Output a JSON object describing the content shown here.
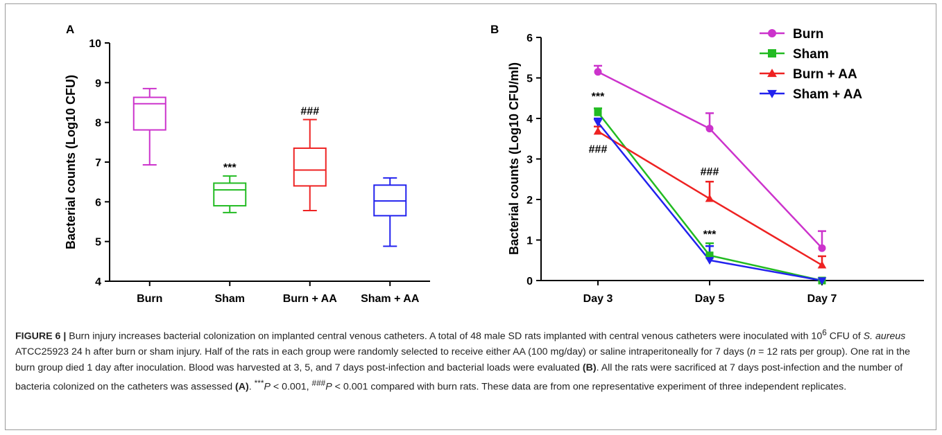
{
  "figure": {
    "caption": {
      "label": "FIGURE 6 |",
      "s1": " Burn injury increases bacterial colonization on implanted central venous catheters. A total of 48 male SD rats implanted with central venous catheters were inoculated with 10",
      "sup1": "6",
      "s2": " CFU of ",
      "species": "S. aureus",
      "s3": " ATCC25923 24 h after burn or sham injury. Half of the rats in each group were randomly selected to receive either AA (100 mg/day) or saline intraperitoneally for 7 days (",
      "n_italic": "n",
      "s4": " = 12 rats per group). One rat in the burn group died 1 day after inoculation. Blood was harvested at 3, 5, and 7 days post-infection and bacterial loads were evaluated ",
      "ref_b": "(B)",
      "s5": ". All the rats were sacrificed at 7 days post-infection and the number of bacteria colonized on the catheters was assessed ",
      "ref_a": "(A)",
      "s6": ". ",
      "p1_sup": "***",
      "p1": "P",
      "s7": " < 0.001, ",
      "p2_sup": "###",
      "p2": "P",
      "s8": " < 0.001 compared with burn rats. These data are from one representative experiment of three independent replicates."
    }
  },
  "chart_data": [
    {
      "panel": "A",
      "type": "box",
      "xlabel": "",
      "ylabel": "Bacterial counts (Log10 CFU)",
      "ylim": [
        4,
        10
      ],
      "yticks": [
        4,
        5,
        6,
        7,
        8,
        9,
        10
      ],
      "categories": [
        "Burn",
        "Sham",
        "Burn + AA",
        "Sham + AA"
      ],
      "colors": [
        "#cc33cc",
        "#22bb22",
        "#ee2222",
        "#2222ee"
      ],
      "boxes": [
        {
          "min": 6.93,
          "q1": 7.81,
          "median": 8.47,
          "q3": 8.63,
          "max": 8.85,
          "annotation": ""
        },
        {
          "min": 5.73,
          "q1": 5.9,
          "median": 6.3,
          "q3": 6.47,
          "max": 6.65,
          "annotation": "***"
        },
        {
          "min": 5.78,
          "q1": 6.4,
          "median": 6.8,
          "q3": 7.35,
          "max": 8.07,
          "annotation": "###"
        },
        {
          "min": 4.88,
          "q1": 5.65,
          "median": 6.02,
          "q3": 6.42,
          "max": 6.6,
          "annotation": ""
        }
      ]
    },
    {
      "panel": "B",
      "type": "line",
      "xlabel": "",
      "ylabel": "Bacterial counts (Log10 CFU/ml)",
      "ylim": [
        0,
        6
      ],
      "yticks": [
        0,
        1,
        2,
        3,
        4,
        5,
        6
      ],
      "categories": [
        "Day 3",
        "Day 5",
        "Day 7"
      ],
      "legend": "top-right",
      "series": [
        {
          "name": "Burn",
          "color": "#cc33cc",
          "marker": "circle",
          "values": [
            5.15,
            3.75,
            0.8
          ],
          "errors": [
            0.15,
            0.38,
            0.42
          ]
        },
        {
          "name": "Sham",
          "color": "#22bb22",
          "marker": "square",
          "values": [
            4.15,
            0.62,
            0.0
          ],
          "errors": [
            0.1,
            0.3,
            0.0
          ]
        },
        {
          "name": "Burn + AA",
          "color": "#ee2222",
          "marker": "triangle-up",
          "values": [
            3.68,
            2.02,
            0.38
          ],
          "errors": [
            0.12,
            0.42,
            0.22
          ]
        },
        {
          "name": "Sham + AA",
          "color": "#2222ee",
          "marker": "triangle-down",
          "values": [
            3.9,
            0.5,
            0.0
          ],
          "errors": [
            0.1,
            0.35,
            0.0
          ]
        }
      ],
      "annotations": [
        {
          "text": "***",
          "x": "Day 3",
          "y": 4.45
        },
        {
          "text": "###",
          "x": "Day 3",
          "y": 3.15
        },
        {
          "text": "###",
          "x": "Day 5",
          "y": 2.6
        },
        {
          "text": "***",
          "x": "Day 5",
          "y": 1.05
        }
      ]
    }
  ]
}
